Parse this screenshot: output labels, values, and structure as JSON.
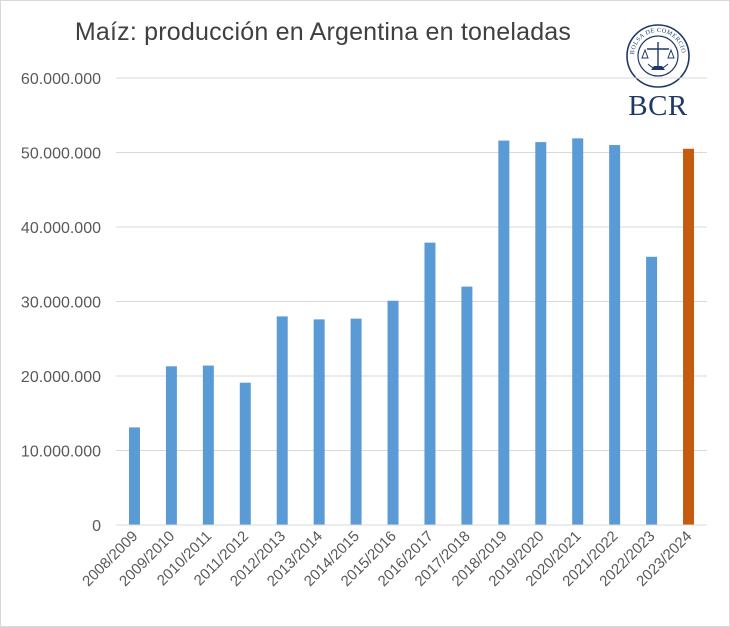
{
  "chart_data": {
    "type": "bar",
    "title": "Maíz: producción en Argentina en toneladas",
    "xlabel": "",
    "ylabel": "",
    "ylim": [
      0,
      60000000
    ],
    "yticks": [
      0,
      10000000,
      20000000,
      30000000,
      40000000,
      50000000,
      60000000
    ],
    "ytick_labels": [
      "0",
      "10.000.000",
      "20.000.000",
      "30.000.000",
      "40.000.000",
      "50.000.000",
      "60.000.000"
    ],
    "grid": true,
    "categories": [
      "2008/2009",
      "2009/2010",
      "2010/2011",
      "2011/2012",
      "2012/2013",
      "2013/2014",
      "2014/2015",
      "2015/2016",
      "2016/2017",
      "2017/2018",
      "2018/2019",
      "2019/2020",
      "2020/2021",
      "2021/2022",
      "2022/2023",
      "2023/2024"
    ],
    "values": [
      13100000,
      21300000,
      21400000,
      19100000,
      28000000,
      27600000,
      27700000,
      30100000,
      37900000,
      32000000,
      51600000,
      51400000,
      51900000,
      51000000,
      36000000,
      50500000
    ],
    "colors": {
      "bar": "#5b9bd5",
      "highlight": "#c55a11",
      "grid": "#d9d9d9",
      "axis": "#d9d9d9",
      "text": "#595959",
      "logo": "#1f3864"
    },
    "highlight_index": 15
  },
  "logo": {
    "text": "BCR",
    "seal_text": "BOLSA DE COMERCIO DE ROSARIO"
  }
}
